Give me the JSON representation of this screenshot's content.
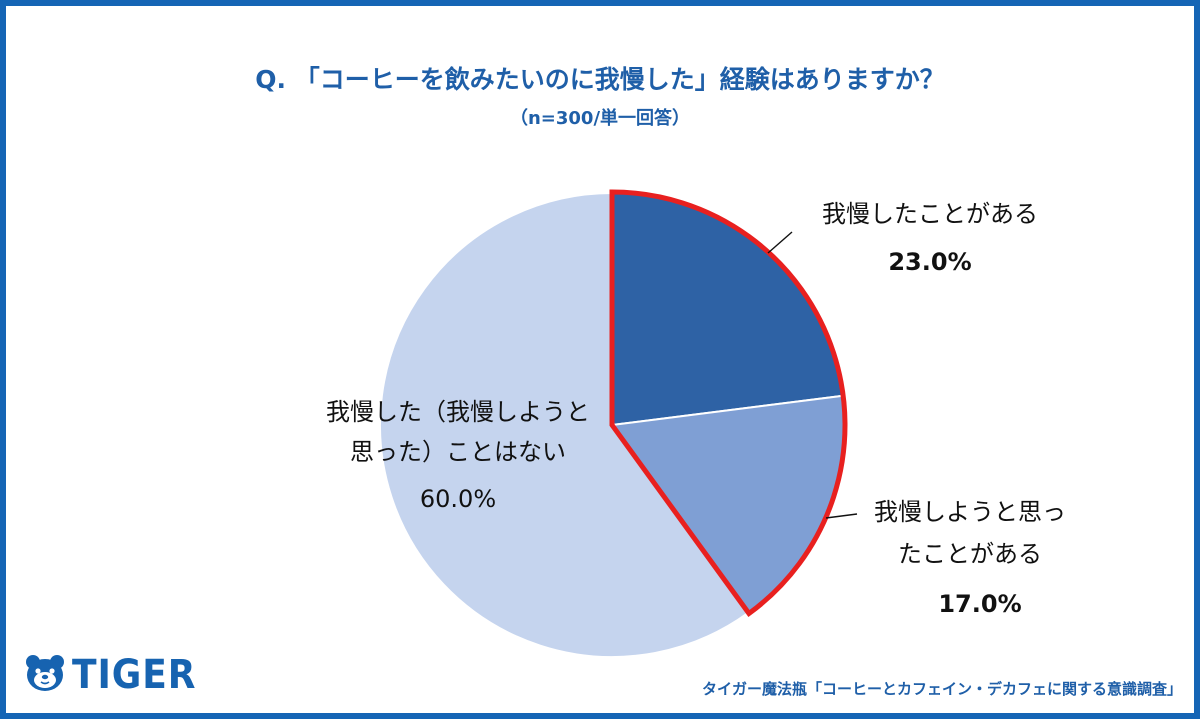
{
  "title": "Q. 「コーヒーを飲みたいのに我慢した」経験はありますか？",
  "subtitle": "（n=300/単一回答）",
  "brand": "TIGER",
  "source": "タイガー魔法瓶「コーヒーとカフェイン・デカフェに関する意識調査」",
  "colors": {
    "frame": "#1565b5",
    "accent": "#1f5fa8",
    "highlight_outline": "#e8201f"
  },
  "chart_data": {
    "type": "pie",
    "start_angle": "12 o'clock",
    "direction": "clockwise",
    "slices": [
      {
        "label_lines": [
          "我慢したことがある"
        ],
        "value": 23.0,
        "value_text": "23.0%",
        "color": "#2e62a5",
        "highlighted": true
      },
      {
        "label_lines": [
          "我慢しようと思っ",
          "たことがある"
        ],
        "value": 17.0,
        "value_text": "17.0%",
        "color": "#7f9fd4",
        "highlighted": true
      },
      {
        "label_lines": [
          "我慢した（我慢しようと",
          "思った）ことはない"
        ],
        "value": 60.0,
        "value_text": "60.0%",
        "color": "#c5d4ee",
        "highlighted": false
      }
    ]
  }
}
